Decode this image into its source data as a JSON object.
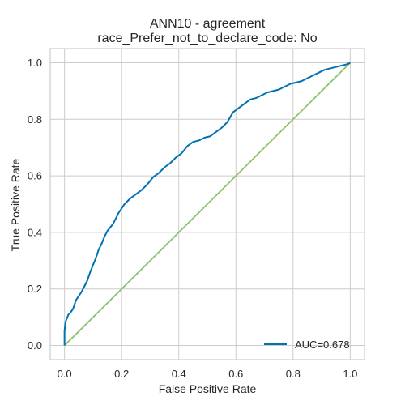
{
  "chart_data": {
    "type": "line",
    "title_line1": "ANN10 - agreement",
    "title_line2": "race_Prefer_not_to_declare_code: No",
    "xlabel": "False Positive Rate",
    "ylabel": "True Positive Rate",
    "xlim": [
      -0.05,
      1.05
    ],
    "ylim": [
      -0.05,
      1.05
    ],
    "xticks": [
      "0.0",
      "0.2",
      "0.4",
      "0.6",
      "0.8",
      "1.0"
    ],
    "yticks": [
      "0.0",
      "0.2",
      "0.4",
      "0.6",
      "0.8",
      "1.0"
    ],
    "grid": true,
    "legend_position": "bottom-right",
    "series": [
      {
        "name": "AUC=0.678",
        "color": "#0072b2",
        "x": [
          0,
          0,
          0.003,
          0.006,
          0.01,
          0.014,
          0.02,
          0.03,
          0.04,
          0.05,
          0.06,
          0.07,
          0.08,
          0.09,
          0.1,
          0.11,
          0.12,
          0.13,
          0.14,
          0.15,
          0.17,
          0.19,
          0.21,
          0.23,
          0.25,
          0.27,
          0.29,
          0.31,
          0.33,
          0.35,
          0.37,
          0.39,
          0.41,
          0.43,
          0.45,
          0.47,
          0.49,
          0.51,
          0.53,
          0.55,
          0.57,
          0.59,
          0.61,
          0.63,
          0.65,
          0.67,
          0.69,
          0.71,
          0.73,
          0.75,
          0.77,
          0.79,
          0.81,
          0.83,
          0.85,
          0.87,
          0.89,
          0.91,
          0.93,
          0.95,
          0.97,
          0.99,
          1.0
        ],
        "y": [
          0,
          0.05,
          0.08,
          0.09,
          0.1,
          0.11,
          0.115,
          0.13,
          0.16,
          0.175,
          0.19,
          0.21,
          0.23,
          0.26,
          0.285,
          0.31,
          0.34,
          0.36,
          0.385,
          0.405,
          0.43,
          0.47,
          0.5,
          0.52,
          0.535,
          0.55,
          0.57,
          0.595,
          0.61,
          0.63,
          0.645,
          0.665,
          0.68,
          0.705,
          0.72,
          0.725,
          0.735,
          0.74,
          0.755,
          0.77,
          0.79,
          0.825,
          0.84,
          0.855,
          0.87,
          0.875,
          0.885,
          0.895,
          0.9,
          0.905,
          0.915,
          0.925,
          0.93,
          0.935,
          0.945,
          0.955,
          0.965,
          0.975,
          0.98,
          0.985,
          0.99,
          0.995,
          1.0
        ]
      },
      {
        "name": "",
        "color": "#8fc16a",
        "x": [
          0,
          1
        ],
        "y": [
          0,
          1
        ]
      }
    ]
  }
}
